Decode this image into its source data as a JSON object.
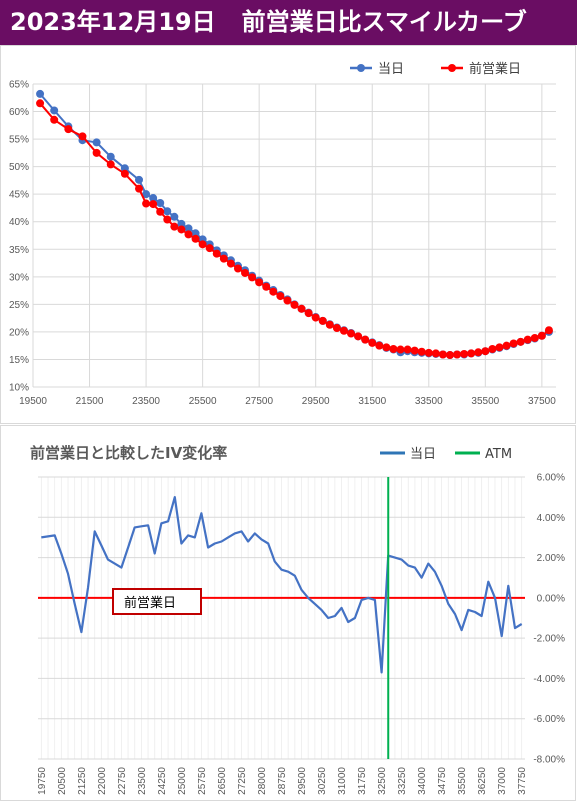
{
  "header": {
    "date": "2023年12月19日",
    "title": "前営業日比スマイルカーブ"
  },
  "colors": {
    "header_bg": "#6a0d63",
    "today": "#4472c4",
    "prev": "#ff0000",
    "atm": "#00b050",
    "iv_line": "#4472c4",
    "zero_line": "#ff0000"
  },
  "chart_data": [
    {
      "type": "line",
      "legend_position": "top-right",
      "grid": true,
      "xlim": [
        19500,
        38000
      ],
      "ylim": [
        10,
        65
      ],
      "xticks": [
        "19500",
        "21500",
        "23500",
        "25500",
        "27500",
        "29500",
        "31500",
        "33500",
        "35500",
        "37500"
      ],
      "yticks": [
        "10%",
        "15%",
        "20%",
        "25%",
        "30%",
        "35%",
        "40%",
        "45%",
        "50%",
        "55%",
        "60%",
        "65%"
      ],
      "series": [
        {
          "name": "当日",
          "color": "#4472c4",
          "points": [
            [
              19750,
              63.2
            ],
            [
              20250,
              60.2
            ],
            [
              20750,
              57.3
            ],
            [
              21250,
              54.8
            ],
            [
              21750,
              54.4
            ],
            [
              22250,
              51.8
            ],
            [
              22750,
              49.7
            ],
            [
              23250,
              47.6
            ],
            [
              23500,
              45.0
            ],
            [
              23750,
              44.3
            ],
            [
              24000,
              43.4
            ],
            [
              24250,
              41.9
            ],
            [
              24500,
              40.9
            ],
            [
              24750,
              39.6
            ],
            [
              25000,
              38.8
            ],
            [
              25250,
              37.9
            ],
            [
              25500,
              36.8
            ],
            [
              25750,
              35.9
            ],
            [
              26000,
              34.8
            ],
            [
              26250,
              33.9
            ],
            [
              26500,
              33.0
            ],
            [
              26750,
              32.0
            ],
            [
              27000,
              31.2
            ],
            [
              27250,
              30.2
            ],
            [
              27500,
              29.3
            ],
            [
              27750,
              28.4
            ],
            [
              28000,
              27.6
            ],
            [
              28250,
              26.7
            ],
            [
              28500,
              25.9
            ],
            [
              28750,
              25.0
            ],
            [
              29000,
              24.2
            ],
            [
              29250,
              23.5
            ],
            [
              29500,
              22.7
            ],
            [
              29750,
              22.0
            ],
            [
              30000,
              21.4
            ],
            [
              30250,
              20.8
            ],
            [
              30500,
              20.3
            ],
            [
              30750,
              19.8
            ],
            [
              31000,
              19.2
            ],
            [
              31250,
              18.6
            ],
            [
              31500,
              18.1
            ],
            [
              31750,
              17.6
            ],
            [
              32000,
              17.1
            ],
            [
              32250,
              16.8
            ],
            [
              32500,
              16.3
            ],
            [
              32750,
              16.5
            ],
            [
              33000,
              16.3
            ],
            [
              33250,
              16.2
            ],
            [
              33500,
              16.1
            ],
            [
              33750,
              16.0
            ],
            [
              34000,
              15.9
            ],
            [
              34250,
              15.8
            ],
            [
              34500,
              15.9
            ],
            [
              34750,
              15.9
            ],
            [
              35000,
              16.1
            ],
            [
              35250,
              16.2
            ],
            [
              35500,
              16.5
            ],
            [
              35750,
              16.8
            ],
            [
              36000,
              17.1
            ],
            [
              36250,
              17.4
            ],
            [
              36500,
              17.8
            ],
            [
              36750,
              18.2
            ],
            [
              37000,
              18.5
            ],
            [
              37250,
              18.8
            ],
            [
              37500,
              19.3
            ],
            [
              37750,
              20.0
            ]
          ]
        },
        {
          "name": "前営業日",
          "color": "#ff0000",
          "points": [
            [
              19750,
              61.5
            ],
            [
              20250,
              58.5
            ],
            [
              20750,
              56.8
            ],
            [
              21250,
              55.5
            ],
            [
              21750,
              52.5
            ],
            [
              22250,
              50.4
            ],
            [
              22750,
              48.7
            ],
            [
              23250,
              46.0
            ],
            [
              23500,
              43.3
            ],
            [
              23750,
              43.2
            ],
            [
              24000,
              41.8
            ],
            [
              24250,
              40.4
            ],
            [
              24500,
              39.1
            ],
            [
              24750,
              38.6
            ],
            [
              25000,
              37.7
            ],
            [
              25250,
              36.9
            ],
            [
              25500,
              35.9
            ],
            [
              25750,
              35.2
            ],
            [
              26000,
              34.2
            ],
            [
              26250,
              33.3
            ],
            [
              26500,
              32.4
            ],
            [
              26750,
              31.5
            ],
            [
              27000,
              30.7
            ],
            [
              27250,
              29.9
            ],
            [
              27500,
              29.0
            ],
            [
              27750,
              28.2
            ],
            [
              28000,
              27.3
            ],
            [
              28250,
              26.5
            ],
            [
              28500,
              25.7
            ],
            [
              28750,
              24.9
            ],
            [
              29000,
              24.2
            ],
            [
              29250,
              23.4
            ],
            [
              29500,
              22.6
            ],
            [
              29750,
              22.0
            ],
            [
              30000,
              21.3
            ],
            [
              30250,
              20.7
            ],
            [
              30500,
              20.2
            ],
            [
              30750,
              19.7
            ],
            [
              31000,
              19.2
            ],
            [
              31250,
              18.6
            ],
            [
              31500,
              18.0
            ],
            [
              31750,
              17.5
            ],
            [
              32000,
              17.2
            ],
            [
              32250,
              16.9
            ],
            [
              32500,
              16.8
            ],
            [
              32750,
              16.8
            ],
            [
              33000,
              16.6
            ],
            [
              33250,
              16.4
            ],
            [
              33500,
              16.2
            ],
            [
              33750,
              16.1
            ],
            [
              34000,
              15.9
            ],
            [
              34250,
              15.8
            ],
            [
              34500,
              15.9
            ],
            [
              34750,
              16.0
            ],
            [
              35000,
              16.1
            ],
            [
              35250,
              16.3
            ],
            [
              35500,
              16.5
            ],
            [
              35750,
              16.9
            ],
            [
              36000,
              17.2
            ],
            [
              36250,
              17.5
            ],
            [
              36500,
              17.9
            ],
            [
              36750,
              18.2
            ],
            [
              37000,
              18.6
            ],
            [
              37250,
              18.9
            ],
            [
              37500,
              19.3
            ],
            [
              37750,
              20.3
            ]
          ]
        }
      ]
    },
    {
      "type": "line",
      "title": "前営業日と比較したIV変化率",
      "legend_position": "top-right",
      "grid": true,
      "ylim": [
        -8,
        6
      ],
      "yticks": [
        "6.00%",
        "4.00%",
        "2.00%",
        "0.00%",
        "-2.00%",
        "-4.00%",
        "-6.00%",
        "-8.00%"
      ],
      "categories": [
        "19750",
        "20000",
        "20250",
        "20500",
        "20750",
        "21000",
        "21250",
        "21500",
        "21750",
        "22000",
        "22250",
        "22500",
        "22750",
        "23000",
        "23250",
        "23500",
        "23750",
        "24000",
        "24250",
        "24500",
        "24750",
        "25000",
        "25250",
        "25500",
        "25750",
        "26000",
        "26250",
        "26500",
        "26750",
        "27000",
        "27250",
        "27500",
        "27750",
        "28000",
        "28250",
        "28500",
        "28750",
        "29000",
        "29250",
        "29500",
        "29750",
        "30000",
        "30250",
        "30500",
        "30750",
        "31000",
        "31250",
        "31500",
        "31750",
        "32000",
        "32250",
        "32500",
        "32750",
        "33000",
        "33250",
        "33500",
        "33750",
        "34000",
        "34250",
        "34500",
        "34750",
        "35000",
        "35250",
        "35500",
        "35750",
        "36000",
        "36250",
        "36500",
        "36750",
        "37000",
        "37250",
        "37500",
        "37750"
      ],
      "xtick_labels": [
        "19750",
        "20500",
        "21250",
        "22000",
        "22750",
        "23500",
        "24250",
        "25000",
        "25750",
        "26500",
        "27250",
        "28000",
        "28750",
        "29500",
        "30250",
        "31000",
        "31750",
        "32500",
        "33250",
        "34000",
        "34750",
        "35500",
        "36250",
        "37000",
        "37750"
      ],
      "series": [
        {
          "name": "当日",
          "color": "#4472c4",
          "values": [
            3.0,
            3.05,
            3.1,
            2.2,
            1.2,
            -0.3,
            -1.7,
            0.5,
            3.3,
            2.6,
            1.9,
            1.7,
            1.5,
            2.5,
            3.5,
            3.55,
            3.6,
            2.2,
            3.7,
            3.8,
            5.0,
            2.7,
            3.1,
            3.0,
            4.2,
            2.5,
            2.7,
            2.8,
            3.0,
            3.2,
            3.3,
            2.8,
            3.2,
            2.9,
            2.7,
            1.8,
            1.4,
            1.3,
            1.1,
            0.4,
            0.0,
            -0.3,
            -0.6,
            -1.0,
            -0.9,
            -0.5,
            -1.2,
            -1.0,
            -0.1,
            0.0,
            -0.1,
            -3.7,
            2.1,
            2.0,
            1.9,
            1.6,
            1.5,
            1.0,
            1.7,
            1.3,
            0.6,
            -0.3,
            -0.8,
            -1.6,
            -0.6,
            -0.7,
            -0.9,
            0.8,
            0.0,
            -1.9,
            0.6,
            -1.5,
            -1.3
          ]
        },
        {
          "name": "ATM",
          "color": "#00b050",
          "x": "32750"
        }
      ],
      "annotation": "前営業日",
      "reference_line": 0
    }
  ]
}
